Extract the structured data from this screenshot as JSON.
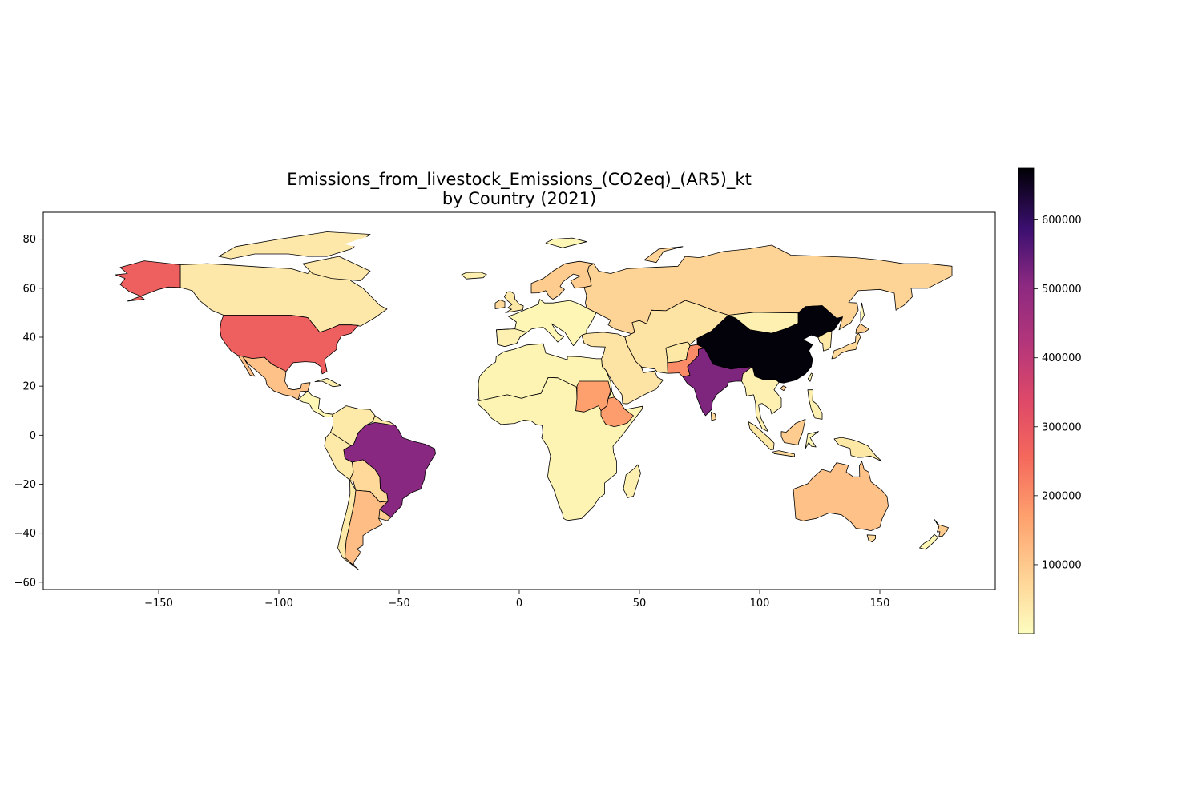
{
  "title_line1": "Emissions_from_livestock_Emissions_(CO2eq)_(AR5)_kt",
  "title_line2": "by Country (2021)",
  "map": {
    "xlim": [
      -198,
      198
    ],
    "ylim": [
      -63,
      91
    ],
    "x_ticks": [
      -150,
      -100,
      -50,
      0,
      50,
      100,
      150
    ],
    "x_tick_labels": [
      "−150",
      "−100",
      "−50",
      "0",
      "50",
      "100",
      "150"
    ],
    "y_ticks": [
      80,
      60,
      40,
      20,
      0,
      -20,
      -40,
      -60
    ],
    "y_tick_labels": [
      "80",
      "60",
      "40",
      "20",
      "0",
      "−20",
      "−40",
      "−60"
    ]
  },
  "colorbar": {
    "colormap": "magma_r",
    "range": [
      0,
      675000
    ],
    "ticks": [
      100000,
      200000,
      300000,
      400000,
      500000,
      600000
    ],
    "tick_labels": [
      "100000",
      "200000",
      "300000",
      "400000",
      "500000",
      "600000"
    ]
  },
  "countries": [
    {
      "name": "China",
      "value": 670000
    },
    {
      "name": "India",
      "value": 520000
    },
    {
      "name": "Brazil",
      "value": 510000
    },
    {
      "name": "United States",
      "value": 280000
    },
    {
      "name": "Alaska",
      "value": 280000
    },
    {
      "name": "Pakistan",
      "value": 200000
    },
    {
      "name": "Sudan",
      "value": 170000
    },
    {
      "name": "Ethiopia",
      "value": 175000
    },
    {
      "name": "Argentina",
      "value": 120000
    },
    {
      "name": "Australia",
      "value": 110000
    },
    {
      "name": "Mexico",
      "value": 110000
    },
    {
      "name": "Russia",
      "value": 80000
    },
    {
      "name": "Canada",
      "value": 40000
    }
  ]
}
